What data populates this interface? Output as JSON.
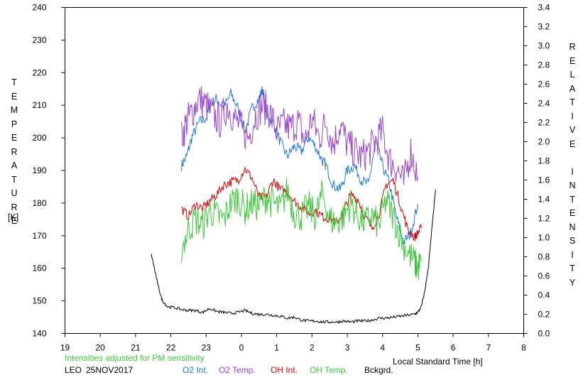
{
  "chart_data": {
    "type": "line",
    "title": "",
    "station": "LEO",
    "date": "25NOV2017",
    "left_axis": {
      "label": "TEMPERATURE",
      "unit": "[K]",
      "range": [
        140,
        240
      ],
      "ticks": [
        "240",
        "230",
        "220",
        "210",
        "200",
        "190",
        "180",
        "170",
        "160",
        "150",
        "140"
      ]
    },
    "right_axis": {
      "label": "RELATIVE INTENSITY",
      "range": [
        0.0,
        3.4
      ],
      "ticks": [
        "3.4",
        "3.2",
        "3.0",
        "2.8",
        "2.6",
        "2.4",
        "2.2",
        "2.0",
        "1.8",
        "1.6",
        "1.4",
        "1.2",
        "1.0",
        "0.8",
        "0.6",
        "0.4",
        "0.2",
        "0.0"
      ]
    },
    "x_axis": {
      "label": "Local Standard Time [h]",
      "range": [
        19,
        32
      ],
      "ticks": [
        "19",
        "20",
        "21",
        "22",
        "23",
        "0",
        "1",
        "2",
        "3",
        "4",
        "5",
        "6",
        "7",
        "8"
      ]
    },
    "note": "Intensities adjusted for PM sensitivity",
    "grid": false,
    "legend_position": "bottom",
    "series": [
      {
        "name": "O2 Int.",
        "axis": "right",
        "color": "#1e78dc",
        "x": [
          22.3,
          22.45,
          22.6,
          22.8,
          23.0,
          23.15,
          23.3,
          23.5,
          23.7,
          23.9,
          24.1,
          24.3,
          24.5,
          24.6,
          24.7,
          24.9,
          25.1,
          25.3,
          25.5,
          25.7,
          25.9,
          26.1,
          26.3,
          26.4,
          26.6,
          26.8,
          27.0,
          27.2,
          27.4,
          27.6,
          27.8,
          28.0,
          28.2,
          28.4,
          28.6,
          28.8,
          29.0
        ],
        "y": [
          1.75,
          1.85,
          2.05,
          2.2,
          2.25,
          2.4,
          2.45,
          2.35,
          2.5,
          2.35,
          2.1,
          2.35,
          2.45,
          2.55,
          2.3,
          2.2,
          2.0,
          1.85,
          1.95,
          1.9,
          2.05,
          1.95,
          1.8,
          1.75,
          1.55,
          1.5,
          1.7,
          1.75,
          1.6,
          1.55,
          2.0,
          1.75,
          1.55,
          1.2,
          0.95,
          1.05,
          1.35
        ]
      },
      {
        "name": "O2 Temp.",
        "axis": "left",
        "color": "#9a44d4",
        "x": [
          22.3,
          22.45,
          22.6,
          22.8,
          23.0,
          23.2,
          23.4,
          23.6,
          23.8,
          24.0,
          24.2,
          24.4,
          24.6,
          24.8,
          25.0,
          25.2,
          25.4,
          25.6,
          25.8,
          26.0,
          26.2,
          26.4,
          26.6,
          26.8,
          27.0,
          27.2,
          27.4,
          27.6,
          27.8,
          28.0,
          28.2,
          28.4,
          28.6,
          28.8,
          29.0
        ],
        "y": [
          200,
          205,
          208,
          212,
          210,
          207,
          205,
          210,
          206,
          203,
          200,
          207,
          210,
          208,
          202,
          204,
          203,
          205,
          199,
          206,
          200,
          205,
          198,
          204,
          198,
          196,
          194,
          196,
          199,
          202,
          193,
          191,
          186,
          196,
          188
        ]
      },
      {
        "name": "OH Int.",
        "axis": "right",
        "color": "#e00000",
        "x": [
          22.3,
          22.5,
          22.7,
          22.9,
          23.1,
          23.3,
          23.5,
          23.7,
          23.9,
          24.1,
          24.3,
          24.5,
          24.7,
          24.9,
          25.1,
          25.3,
          25.5,
          25.7,
          25.9,
          26.1,
          26.3,
          26.5,
          26.7,
          26.9,
          27.1,
          27.3,
          27.5,
          27.7,
          27.9,
          28.1,
          28.3,
          28.5,
          28.7,
          28.9,
          29.0,
          29.1
        ],
        "y": [
          1.3,
          1.22,
          1.35,
          1.3,
          1.38,
          1.45,
          1.55,
          1.58,
          1.6,
          1.72,
          1.62,
          1.42,
          1.42,
          1.6,
          1.5,
          1.48,
          1.38,
          1.32,
          1.25,
          1.28,
          1.22,
          1.2,
          1.15,
          1.28,
          1.45,
          1.4,
          1.22,
          1.1,
          1.25,
          1.55,
          1.6,
          1.35,
          1.1,
          1.0,
          1.05,
          1.1
        ]
      },
      {
        "name": "OH Temp.",
        "axis": "left",
        "color": "#3cc83c",
        "x": [
          22.3,
          22.5,
          22.7,
          22.9,
          23.1,
          23.3,
          23.5,
          23.7,
          23.9,
          24.1,
          24.3,
          24.5,
          24.7,
          24.9,
          25.1,
          25.3,
          25.5,
          25.7,
          25.9,
          26.1,
          26.3,
          26.5,
          26.7,
          26.9,
          27.1,
          27.3,
          27.5,
          27.7,
          27.9,
          28.1,
          28.3,
          28.5,
          28.7,
          28.9,
          29.0,
          29.1
        ],
        "y": [
          166,
          172,
          175,
          173,
          178,
          176,
          175,
          180,
          182,
          178,
          180,
          179,
          182,
          180,
          178,
          184,
          177,
          176,
          179,
          176,
          183,
          175,
          174,
          176,
          180,
          176,
          174,
          176,
          173,
          181,
          176,
          170,
          165,
          162,
          160,
          162
        ]
      },
      {
        "name": "Bckgrd.",
        "axis": "right",
        "color": "#000000",
        "x": [
          21.45,
          21.55,
          21.65,
          21.75,
          21.9,
          22.1,
          22.3,
          22.5,
          22.7,
          22.9,
          23.1,
          23.3,
          23.5,
          23.7,
          23.9,
          24.1,
          24.3,
          24.5,
          24.7,
          24.9,
          25.1,
          25.3,
          25.5,
          25.7,
          25.9,
          26.1,
          26.3,
          26.5,
          26.7,
          26.9,
          27.1,
          27.3,
          27.5,
          27.7,
          27.9,
          28.1,
          28.3,
          28.5,
          28.7,
          28.9,
          29.0,
          29.1,
          29.2,
          29.3,
          29.4,
          29.5
        ],
        "y": [
          0.82,
          0.65,
          0.48,
          0.35,
          0.28,
          0.27,
          0.25,
          0.24,
          0.24,
          0.22,
          0.26,
          0.23,
          0.22,
          0.21,
          0.22,
          0.24,
          0.21,
          0.2,
          0.2,
          0.19,
          0.18,
          0.16,
          0.17,
          0.14,
          0.13,
          0.13,
          0.12,
          0.12,
          0.12,
          0.13,
          0.12,
          0.13,
          0.13,
          0.14,
          0.16,
          0.16,
          0.17,
          0.18,
          0.19,
          0.2,
          0.22,
          0.28,
          0.45,
          0.7,
          1.1,
          1.5
        ]
      }
    ]
  }
}
